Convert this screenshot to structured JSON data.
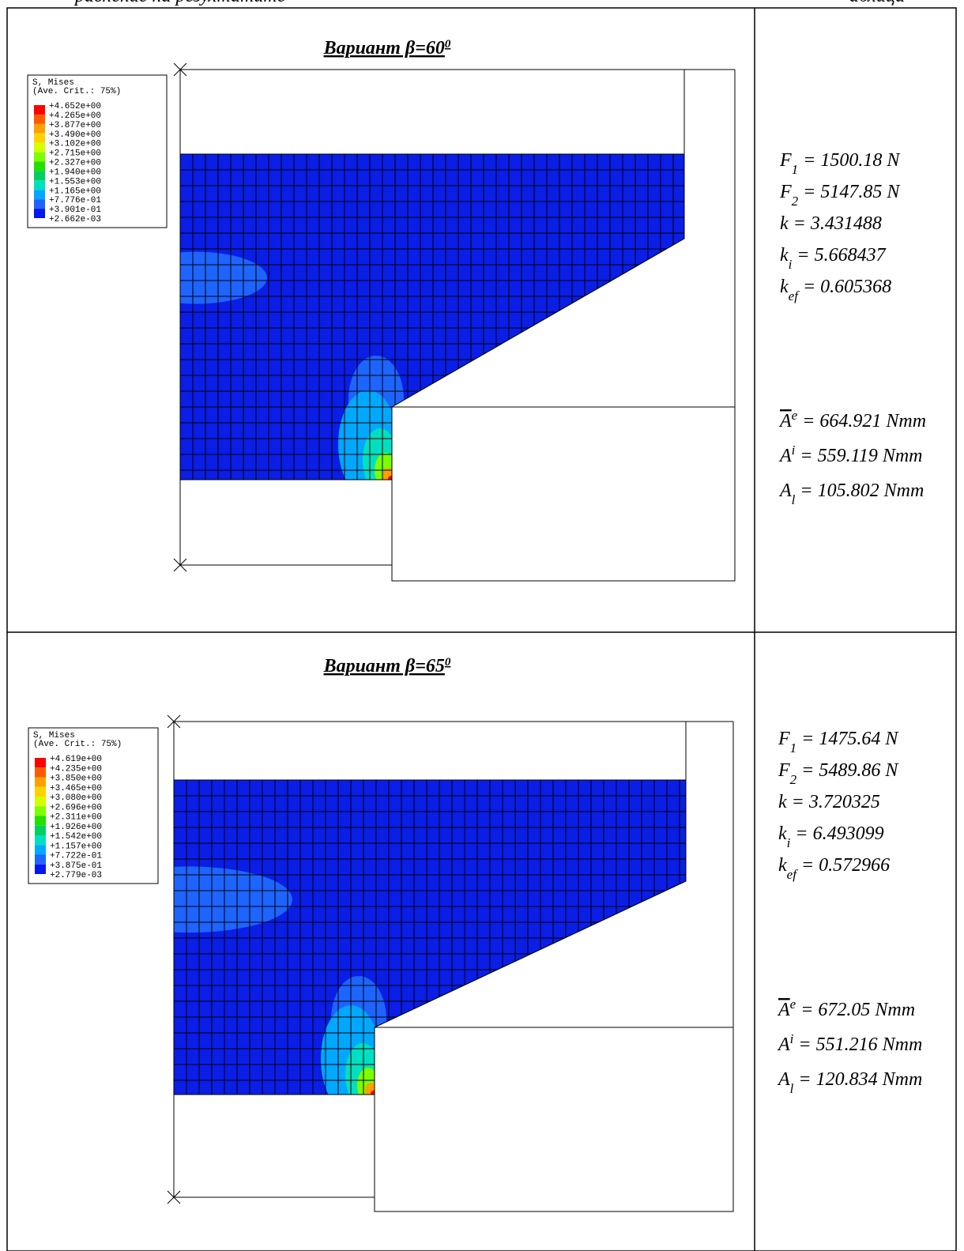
{
  "header": {
    "left": "равнение на резултатите",
    "right": "аблица"
  },
  "table": {
    "rows": [
      {
        "title": "Вариант β=60",
        "title_sup": "0",
        "legend": {
          "title": "S, Mises",
          "subtitle": "(Ave. Crit.: 75%)",
          "values": [
            "+4.652e+00",
            "+4.265e+00",
            "+3.877e+00",
            "+3.490e+00",
            "+3.102e+00",
            "+2.715e+00",
            "+2.327e+00",
            "+1.940e+00",
            "+1.553e+00",
            "+1.165e+00",
            "+7.776e-01",
            "+3.901e-01",
            "+2.662e-03"
          ]
        },
        "formulas": [
          {
            "symbol": "F",
            "sub": "1",
            "rest": "= 1500.18 N"
          },
          {
            "symbol": "F",
            "sub": "2",
            "rest": "= 5147.85 N"
          },
          {
            "symbol": "k",
            "rest": "= 3.431488"
          },
          {
            "symbol": "k",
            "sub": "i",
            "rest": "= 5.668437"
          },
          {
            "symbol": "k",
            "sub": "ef",
            "rest": "= 0.605368"
          },
          {
            "symbol": "A",
            "sup": "e",
            "rest": "= 664.921 Nmm"
          },
          {
            "symbol": "A",
            "sup": "i",
            "rest": "= 559.119 Nmm"
          },
          {
            "symbol": "A",
            "sub": "l",
            "rest": "= 105.802 Nmm"
          }
        ]
      },
      {
        "title": "Вариант β=65",
        "title_sup": "0",
        "legend": {
          "title": "S, Mises",
          "subtitle": "(Ave. Crit.: 75%)",
          "values": [
            "+4.619e+00",
            "+4.235e+00",
            "+3.850e+00",
            "+3.465e+00",
            "+3.080e+00",
            "+2.696e+00",
            "+2.311e+00",
            "+1.926e+00",
            "+1.542e+00",
            "+1.157e+00",
            "+7.722e-01",
            "+3.875e-01",
            "+2.779e-03"
          ]
        },
        "formulas": [
          {
            "symbol": "F",
            "sub": "1",
            "rest": "= 1475.64 N"
          },
          {
            "symbol": "F",
            "sub": "2",
            "rest": "= 5489.86 N"
          },
          {
            "symbol": "k",
            "rest": "= 3.720325"
          },
          {
            "symbol": "k",
            "sub": "i",
            "rest": "= 6.493099"
          },
          {
            "symbol": "k",
            "sub": "ef",
            "rest": "= 0.572966"
          },
          {
            "symbol": "A",
            "sup": "e",
            "rest": "= 672.05 Nmm"
          },
          {
            "symbol": "A",
            "sup": "i",
            "rest": "= 551.216 Nmm"
          },
          {
            "symbol": "A",
            "sub": "l",
            "rest": "= 120.834 Nmm"
          }
        ]
      }
    ]
  }
}
